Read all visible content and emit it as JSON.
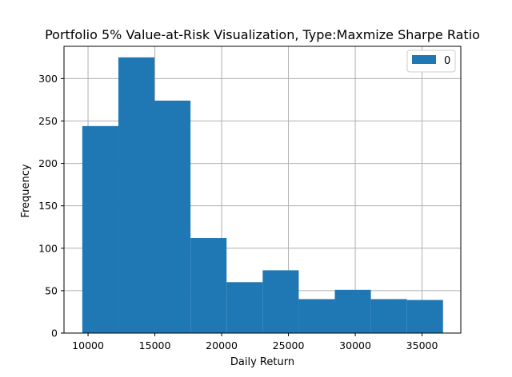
{
  "chart_data": {
    "type": "bar",
    "title": "Portfolio 5% Value-at-Risk Visualization, Type:Maxmize Sharpe Ratio",
    "xlabel": "Daily Return",
    "ylabel": "Frequency",
    "xlim": [
      8200,
      37900
    ],
    "ylim": [
      0,
      338
    ],
    "xticks": [
      10000,
      15000,
      20000,
      25000,
      30000,
      35000
    ],
    "yticks": [
      0,
      50,
      100,
      150,
      200,
      250,
      300
    ],
    "bin_edges": [
      9570,
      12270,
      14970,
      17670,
      20370,
      23070,
      25770,
      28470,
      31170,
      33870,
      36570
    ],
    "values": [
      244,
      325,
      274,
      112,
      60,
      74,
      40,
      51,
      40,
      39
    ],
    "series": [
      {
        "name": "0",
        "color": "#1f77b4"
      }
    ],
    "grid": true,
    "legend_position": "top-right"
  }
}
